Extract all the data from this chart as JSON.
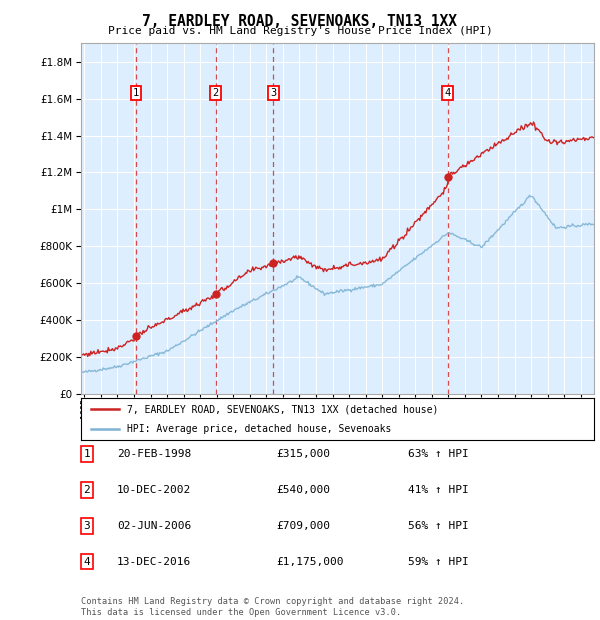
{
  "title": "7, EARDLEY ROAD, SEVENOAKS, TN13 1XX",
  "subtitle": "Price paid vs. HM Land Registry's House Price Index (HPI)",
  "footer": "Contains HM Land Registry data © Crown copyright and database right 2024.\nThis data is licensed under the Open Government Licence v3.0.",
  "legend_line1": "7, EARDLEY ROAD, SEVENOAKS, TN13 1XX (detached house)",
  "legend_line2": "HPI: Average price, detached house, Sevenoaks",
  "transactions": [
    {
      "num": 1,
      "date": "20-FEB-1998",
      "price": 315000,
      "pct": "63% ↑ HPI",
      "year": 1998.13
    },
    {
      "num": 2,
      "date": "10-DEC-2002",
      "price": 540000,
      "pct": "41% ↑ HPI",
      "year": 2002.94
    },
    {
      "num": 3,
      "date": "02-JUN-2006",
      "price": 709000,
      "pct": "56% ↑ HPI",
      "year": 2006.42
    },
    {
      "num": 4,
      "date": "13-DEC-2016",
      "price": 1175000,
      "pct": "59% ↑ HPI",
      "year": 2016.95
    }
  ],
  "hpi_color": "#7fb3d3",
  "price_color": "#cc2222",
  "vline_color": "#cc2222",
  "background_color": "#ddeeff",
  "ylim": [
    0,
    1900000
  ],
  "yticks": [
    0,
    200000,
    400000,
    600000,
    800000,
    1000000,
    1200000,
    1400000,
    1600000,
    1800000
  ],
  "xlim_start": 1994.8,
  "xlim_end": 2025.8
}
